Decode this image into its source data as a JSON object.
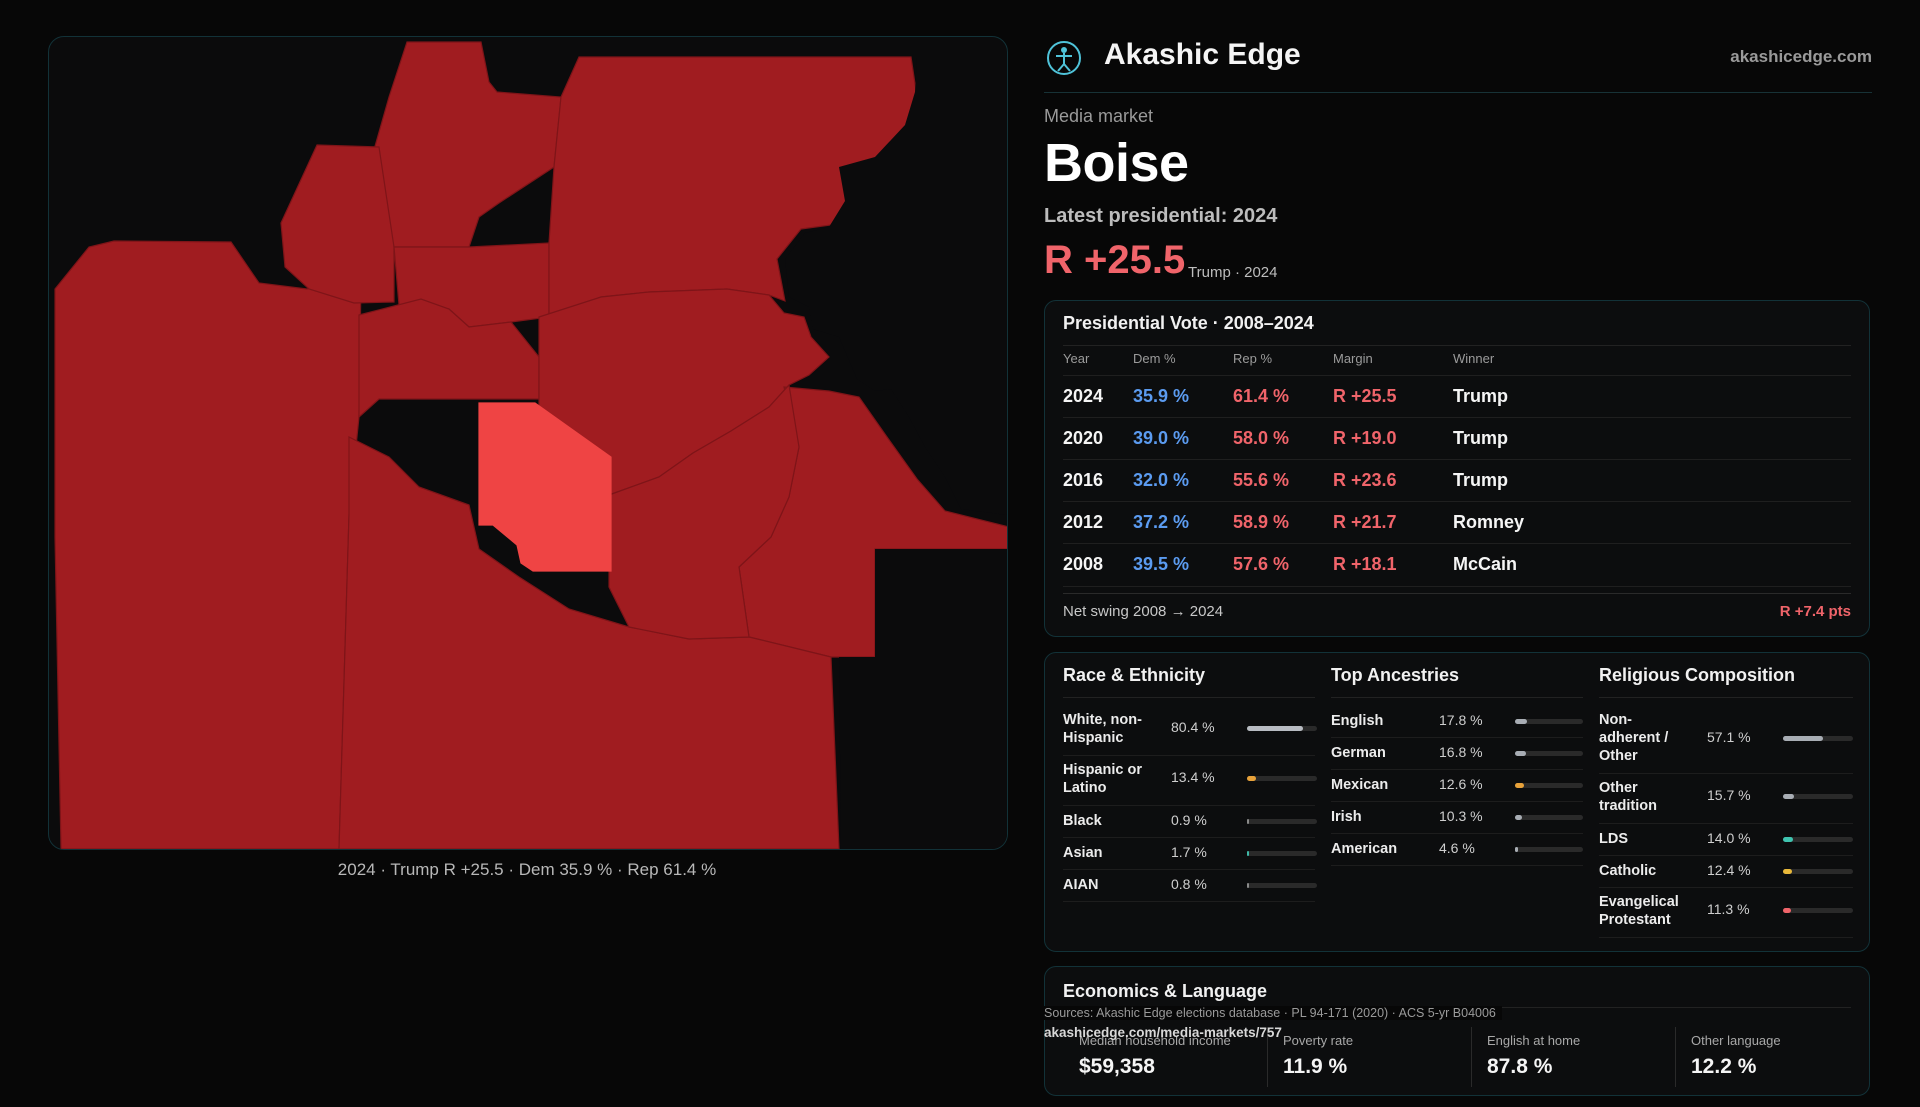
{
  "map": {
    "caption": "2024 · Trump R +25.5 · Dem 35.9 % · Rep 61.4 %",
    "colors": {
      "county": "#a01c20",
      "highlight": "#ef4444",
      "border": "#7e1418"
    }
  },
  "brand": {
    "name": "Akashic Edge",
    "url": "akashicedge.com",
    "logo_icon": "globe-figure-icon"
  },
  "market": {
    "eyebrow": "Media market",
    "name": "Boise",
    "latest_label": "Latest presidential: 2024",
    "margin": "R +25.5",
    "margin_sub": "Trump · 2024"
  },
  "vote_table": {
    "title": "Presidential Vote · 2008–2024",
    "headers": [
      "Year",
      "Dem %",
      "Rep %",
      "Margin",
      "Winner"
    ],
    "rows": [
      [
        "2024",
        "35.9 %",
        "61.4 %",
        "R +25.5",
        "Trump"
      ],
      [
        "2020",
        "39.0 %",
        "58.0 %",
        "R +19.0",
        "Trump"
      ],
      [
        "2016",
        "32.0 %",
        "55.6 %",
        "R +23.6",
        "Trump"
      ],
      [
        "2012",
        "37.2 %",
        "58.9 %",
        "R +21.7",
        "Romney"
      ],
      [
        "2008",
        "39.5 %",
        "57.6 %",
        "R +18.1",
        "McCain"
      ]
    ],
    "swing_label": "Net swing 2008 → 2024",
    "swing_value": "R +7.4 pts"
  },
  "race": {
    "title": "Race & Ethnicity",
    "items": [
      {
        "label": "White, non-Hispanic",
        "value": "80.4 %",
        "pct": 80.4,
        "color": "#b8bcc2"
      },
      {
        "label": "Hispanic or Latino",
        "value": "13.4 %",
        "pct": 13.4,
        "color": "#e8a23a"
      },
      {
        "label": "Black",
        "value": "0.9 %",
        "pct": 0.9,
        "color": "#8a8a8a"
      },
      {
        "label": "Asian",
        "value": "1.7 %",
        "pct": 1.7,
        "color": "#3fb8a8"
      },
      {
        "label": "AIAN",
        "value": "0.8 %",
        "pct": 0.8,
        "color": "#8a8a8a"
      }
    ]
  },
  "ancestry": {
    "title": "Top Ancestries",
    "items": [
      {
        "label": "English",
        "value": "17.8 %",
        "pct": 17.8,
        "color": "#a8adb4"
      },
      {
        "label": "German",
        "value": "16.8 %",
        "pct": 16.8,
        "color": "#a8adb4"
      },
      {
        "label": "Mexican",
        "value": "12.6 %",
        "pct": 12.6,
        "color": "#e8a23a"
      },
      {
        "label": "Irish",
        "value": "10.3 %",
        "pct": 10.3,
        "color": "#a8adb4"
      },
      {
        "label": "American",
        "value": "4.6 %",
        "pct": 4.6,
        "color": "#a8adb4"
      }
    ]
  },
  "religion": {
    "title": "Religious Composition",
    "items": [
      {
        "label": "Non-adherent / Other",
        "value": "57.1 %",
        "pct": 57.1,
        "color": "#a8adb4"
      },
      {
        "label": "Other tradition",
        "value": "15.7 %",
        "pct": 15.7,
        "color": "#a8adb4"
      },
      {
        "label": "LDS",
        "value": "14.0 %",
        "pct": 14.0,
        "color": "#3fc4b0"
      },
      {
        "label": "Catholic",
        "value": "12.4 %",
        "pct": 12.4,
        "color": "#e8b83a"
      },
      {
        "label": "Evangelical Protestant",
        "value": "11.3 %",
        "pct": 11.3,
        "color": "#f0646a"
      }
    ]
  },
  "economics": {
    "title": "Economics & Language",
    "items": [
      {
        "label": "Median household income",
        "value": "$59,358"
      },
      {
        "label": "Poverty rate",
        "value": "11.9 %"
      },
      {
        "label": "English at home",
        "value": "87.8 %"
      },
      {
        "label": "Other language",
        "value": "12.2 %"
      }
    ]
  },
  "footer": {
    "sources": "Sources: Akashic Edge elections database · PL 94-171 (2020) · ACS 5-yr B04006",
    "permalink": "akashicedge.com/media-markets/757"
  }
}
